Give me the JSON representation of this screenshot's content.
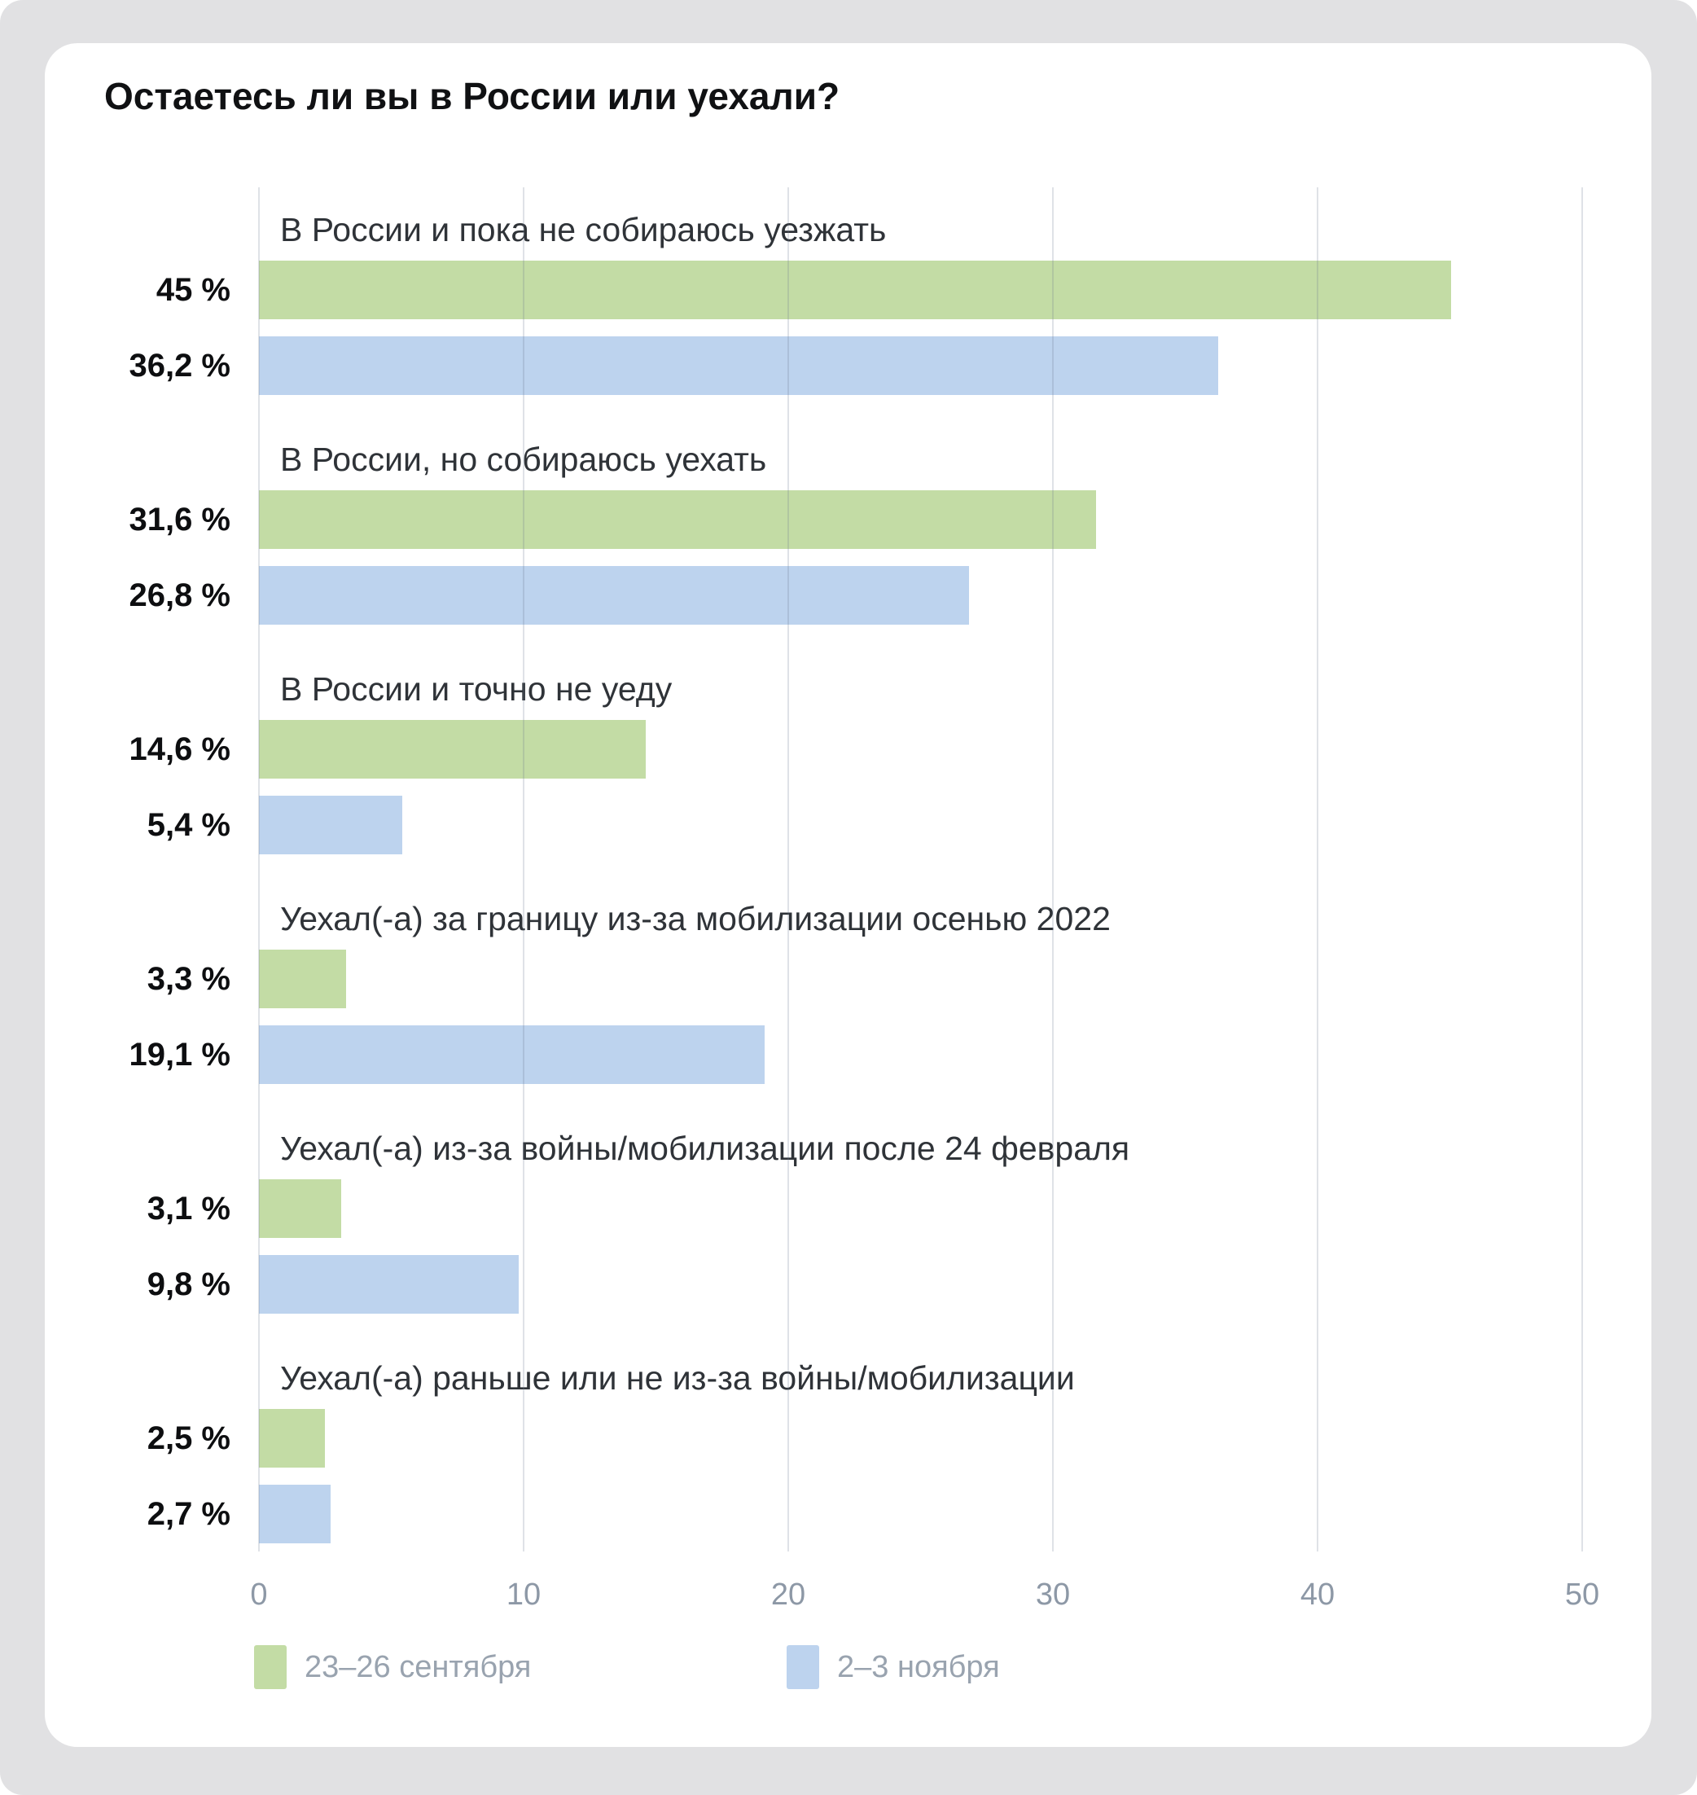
{
  "title": "Остаетесь ли вы в России или уехали?",
  "chart_data": {
    "type": "bar",
    "orientation": "horizontal",
    "title": "Остаетесь ли вы в России или уехали?",
    "categories": [
      "В России и пока не собираюсь уезжать",
      "В России, но собираюсь уехать",
      "В России и точно не уеду",
      "Уехал(-а) за границу из-за мобилизации осенью 2022",
      "Уехал(-а) из-за войны/мобилизации после 24 февраля",
      "Уехал(-а) раньше или не из-за войны/мобилизации"
    ],
    "series": [
      {
        "name": "23–26 сентября",
        "color": "#c3dca5",
        "values": [
          45,
          31.6,
          14.6,
          3.3,
          3.1,
          2.5
        ],
        "labels": [
          "45 %",
          "31,6 %",
          "14,6 %",
          "3,3 %",
          "3,1 %",
          "2,5 %"
        ]
      },
      {
        "name": "2–3 ноября",
        "color": "#bdd3ee",
        "values": [
          36.2,
          26.8,
          5.4,
          19.1,
          9.8,
          2.7
        ],
        "labels": [
          "36,2 %",
          "26,8 %",
          "5,4 %",
          "19,1 %",
          "9,8 %",
          "2,7 %"
        ]
      }
    ],
    "x_ticks": [
      "0",
      "10",
      "20",
      "30",
      "40",
      "50"
    ],
    "xlim": [
      0,
      52
    ],
    "grid": "vertical",
    "legend_position": "bottom",
    "colors": {
      "page_bg": "#e1e1e3",
      "card_bg": "#ffffff",
      "grid_line": "#dfe3e8",
      "tick_text": "#8d98a6",
      "legend_text": "#99a3af",
      "category_text": "#2f3338",
      "value_text": "#0d0e10"
    }
  }
}
